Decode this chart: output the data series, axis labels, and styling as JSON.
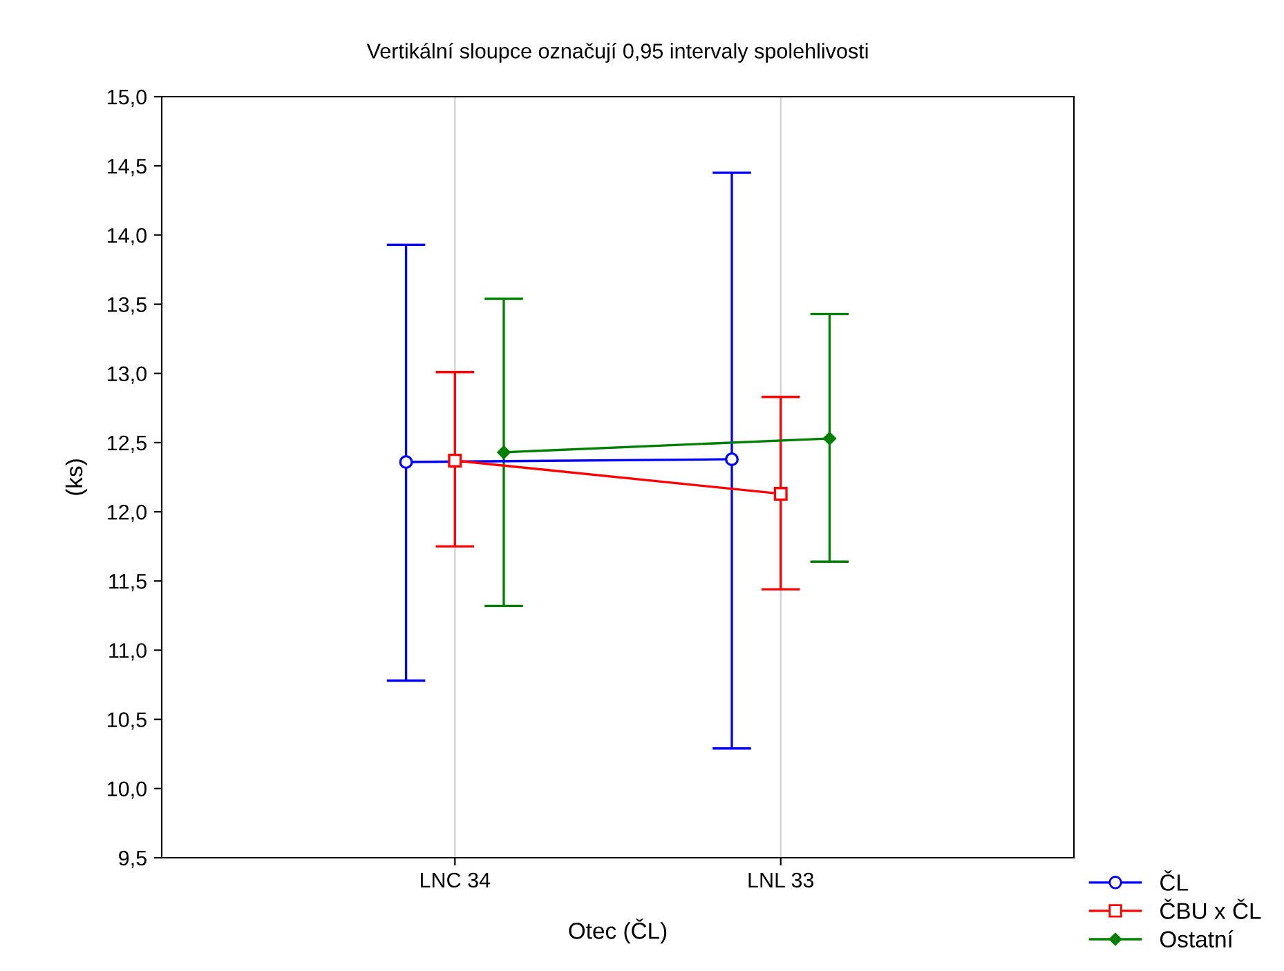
{
  "chart_data": {
    "type": "line",
    "title": "Vertikální sloupce označují 0,95 intervaly spolehlivosti",
    "xlabel": "Otec (ČL)",
    "ylabel": "(ks)",
    "categories": [
      "LNC 34",
      "LNL 33"
    ],
    "series": [
      {
        "name": "ČL",
        "color": "#0000ff",
        "marker": "circle",
        "values": [
          12.36,
          12.38
        ],
        "errors": [
          [
            10.78,
            13.93
          ],
          [
            10.29,
            14.45
          ]
        ]
      },
      {
        "name": "ČBU x ČL",
        "color": "#ff0000",
        "marker": "square",
        "values": [
          12.37,
          12.13
        ],
        "errors": [
          [
            11.75,
            13.01
          ],
          [
            11.44,
            12.83
          ]
        ]
      },
      {
        "name": "Ostatní",
        "color": "#008000",
        "marker": "diamond",
        "values": [
          12.43,
          12.53
        ],
        "errors": [
          [
            11.32,
            13.54
          ],
          [
            11.64,
            13.43
          ]
        ]
      }
    ],
    "ylim": [
      9.5,
      15.0
    ],
    "yticks": [
      {
        "value": 9.5,
        "label": "9,5"
      },
      {
        "value": 10.0,
        "label": "10,0"
      },
      {
        "value": 10.5,
        "label": "10,5"
      },
      {
        "value": 11.0,
        "label": "11,0"
      },
      {
        "value": 11.5,
        "label": "11,5"
      },
      {
        "value": 12.0,
        "label": "12,0"
      },
      {
        "value": 12.5,
        "label": "12,5"
      },
      {
        "value": 13.0,
        "label": "13,0"
      },
      {
        "value": 13.5,
        "label": "13,5"
      },
      {
        "value": 14.0,
        "label": "14,0"
      },
      {
        "value": 14.5,
        "label": "14,5"
      },
      {
        "value": 15.0,
        "label": "15,0"
      }
    ],
    "grid": "x",
    "legend": "bottom right"
  }
}
